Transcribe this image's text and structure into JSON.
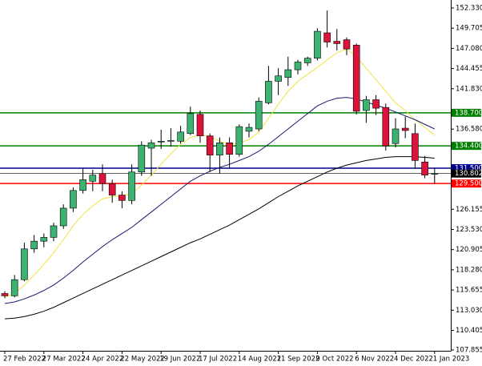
{
  "chart_data": {
    "type": "candlestick",
    "categories": [
      "27 Feb 2022",
      null,
      null,
      null,
      "27 Mar 2022",
      null,
      null,
      null,
      "24 Apr 2022",
      null,
      null,
      null,
      "22 May 2022",
      null,
      null,
      null,
      "19 Jun 2022",
      null,
      null,
      null,
      "17 Jul 2022",
      null,
      null,
      null,
      "14 Aug 2022",
      null,
      null,
      null,
      "11 Sep 2022",
      null,
      null,
      null,
      "9 Oct 2022",
      null,
      null,
      null,
      "6 Nov 2022",
      null,
      null,
      null,
      "4 Dec 2022",
      null,
      null,
      null,
      "1 Jan 2023"
    ],
    "open": [
      115.2,
      114.9,
      117.0,
      121.0,
      122.0,
      122.5,
      124.0,
      126.3,
      128.6,
      129.8,
      130.8,
      129.5,
      128.0,
      127.3,
      131.0,
      134.1,
      134.9,
      135.0,
      135.0,
      136.0,
      138.5,
      135.7,
      133.2,
      134.8,
      133.3,
      136.3,
      136.6,
      140.0,
      142.8,
      143.3,
      144.3,
      145.2,
      145.8,
      149.1,
      148.0,
      148.2,
      147.5,
      139.0,
      140.4,
      139.4,
      134.7,
      136.7,
      136.0,
      132.3,
      130.8
    ],
    "high": [
      115.5,
      117.6,
      121.8,
      122.8,
      123.0,
      124.4,
      126.8,
      129.0,
      131.5,
      131.3,
      132.0,
      130.0,
      128.5,
      132.0,
      135.0,
      135.2,
      136.5,
      136.7,
      137.0,
      139.5,
      139.0,
      136.0,
      135.5,
      135.5,
      137.2,
      137.3,
      140.7,
      144.8,
      144.5,
      146.0,
      145.6,
      146.0,
      149.7,
      152.0,
      149.6,
      148.5,
      147.7,
      140.9,
      141.0,
      139.9,
      138.0,
      138.2,
      137.3,
      133.1,
      131.5
    ],
    "low": [
      114.6,
      114.7,
      116.8,
      120.5,
      121.2,
      122.0,
      123.6,
      125.8,
      128.2,
      128.5,
      128.5,
      127.0,
      126.3,
      126.8,
      130.5,
      130.5,
      134.0,
      134.3,
      134.7,
      135.8,
      134.8,
      131.0,
      130.8,
      131.5,
      133.0,
      135.5,
      136.3,
      139.8,
      141.0,
      142.2,
      143.7,
      144.8,
      145.5,
      147.2,
      146.8,
      146.2,
      138.5,
      137.4,
      138.4,
      133.8,
      134.2,
      135.4,
      131.4,
      130.2,
      129.5
    ],
    "close": [
      114.9,
      117.0,
      121.0,
      122.0,
      122.5,
      124.0,
      126.3,
      128.6,
      130.0,
      130.6,
      129.5,
      128.0,
      127.3,
      131.0,
      134.5,
      134.8,
      135.0,
      135.1,
      136.2,
      138.6,
      135.7,
      133.2,
      134.8,
      133.3,
      136.9,
      136.8,
      140.2,
      142.8,
      143.5,
      144.3,
      145.3,
      145.8,
      149.3,
      147.9,
      147.7,
      147.0,
      138.9,
      140.4,
      139.3,
      134.4,
      136.6,
      136.4,
      132.5,
      130.6,
      130.8
    ],
    "up_color": "#3cb371",
    "down_color": "#dc143c",
    "series": [
      {
        "color": "#f0e442",
        "values": [
          114.7,
          115.2,
          116.3,
          117.6,
          119.0,
          120.5,
          122.2,
          124.0,
          125.5,
          126.6,
          127.5,
          127.8,
          127.9,
          128.2,
          129.3,
          130.6,
          132.0,
          133.4,
          134.6,
          135.5,
          135.8,
          135.6,
          135.0,
          134.6,
          134.8,
          135.2,
          136.2,
          138.0,
          139.8,
          141.5,
          142.8,
          143.7,
          144.6,
          145.6,
          146.5,
          147.0,
          146.0,
          144.5,
          143.0,
          141.5,
          140.0,
          139.0,
          137.8,
          136.8,
          135.8
        ]
      },
      {
        "color": "#191970",
        "values": [
          113.9,
          114.1,
          114.5,
          115.0,
          115.6,
          116.3,
          117.2,
          118.2,
          119.3,
          120.3,
          121.3,
          122.2,
          123.0,
          123.8,
          124.8,
          125.8,
          126.8,
          127.8,
          128.8,
          129.8,
          130.5,
          131.1,
          131.6,
          132.0,
          132.5,
          133.0,
          133.7,
          134.6,
          135.6,
          136.6,
          137.6,
          138.6,
          139.6,
          140.2,
          140.6,
          140.7,
          140.5,
          140.1,
          139.7,
          139.3,
          138.8,
          138.3,
          137.8,
          137.2,
          136.6
        ]
      },
      {
        "color": "#000000",
        "values": [
          111.9,
          112.0,
          112.2,
          112.5,
          112.9,
          113.4,
          114.0,
          114.6,
          115.2,
          115.8,
          116.4,
          117.0,
          117.6,
          118.2,
          118.8,
          119.4,
          120.0,
          120.6,
          121.2,
          121.8,
          122.3,
          122.9,
          123.5,
          124.1,
          124.8,
          125.5,
          126.2,
          127.0,
          127.8,
          128.5,
          129.2,
          129.8,
          130.4,
          131.0,
          131.5,
          131.9,
          132.2,
          132.5,
          132.7,
          132.9,
          133.0,
          133.0,
          133.0,
          132.9,
          132.8
        ]
      }
    ],
    "levels": [
      {
        "value": 138.7,
        "label": "138.700",
        "color": "#008000"
      },
      {
        "value": 134.4,
        "label": "134.400",
        "color": "#008000"
      },
      {
        "value": 131.5,
        "label": "131.500",
        "color": "#00008b"
      },
      {
        "value": 130.802,
        "label": "130.802",
        "color": "#000000"
      },
      {
        "value": 129.5,
        "label": "129.500",
        "color": "#ff0000"
      }
    ],
    "ylim": [
      107.75,
      153.37
    ],
    "yticks": [
      {
        "value": 152.33,
        "label": "152.330"
      },
      {
        "value": 149.705,
        "label": "149.705"
      },
      {
        "value": 147.08,
        "label": "147.080"
      },
      {
        "value": 144.455,
        "label": "144.455"
      },
      {
        "value": 141.83,
        "label": "141.830"
      },
      {
        "value": 136.58,
        "label": "136.580"
      },
      {
        "value": 126.155,
        "label": "126.155"
      },
      {
        "value": 123.53,
        "label": "123.530"
      },
      {
        "value": 120.905,
        "label": "120.905"
      },
      {
        "value": 118.28,
        "label": "118.280"
      },
      {
        "value": 115.655,
        "label": "115.655"
      },
      {
        "value": 113.03,
        "label": "113.030"
      },
      {
        "value": 110.405,
        "label": "110.405"
      },
      {
        "value": 107.855,
        "label": "107.855"
      }
    ]
  }
}
